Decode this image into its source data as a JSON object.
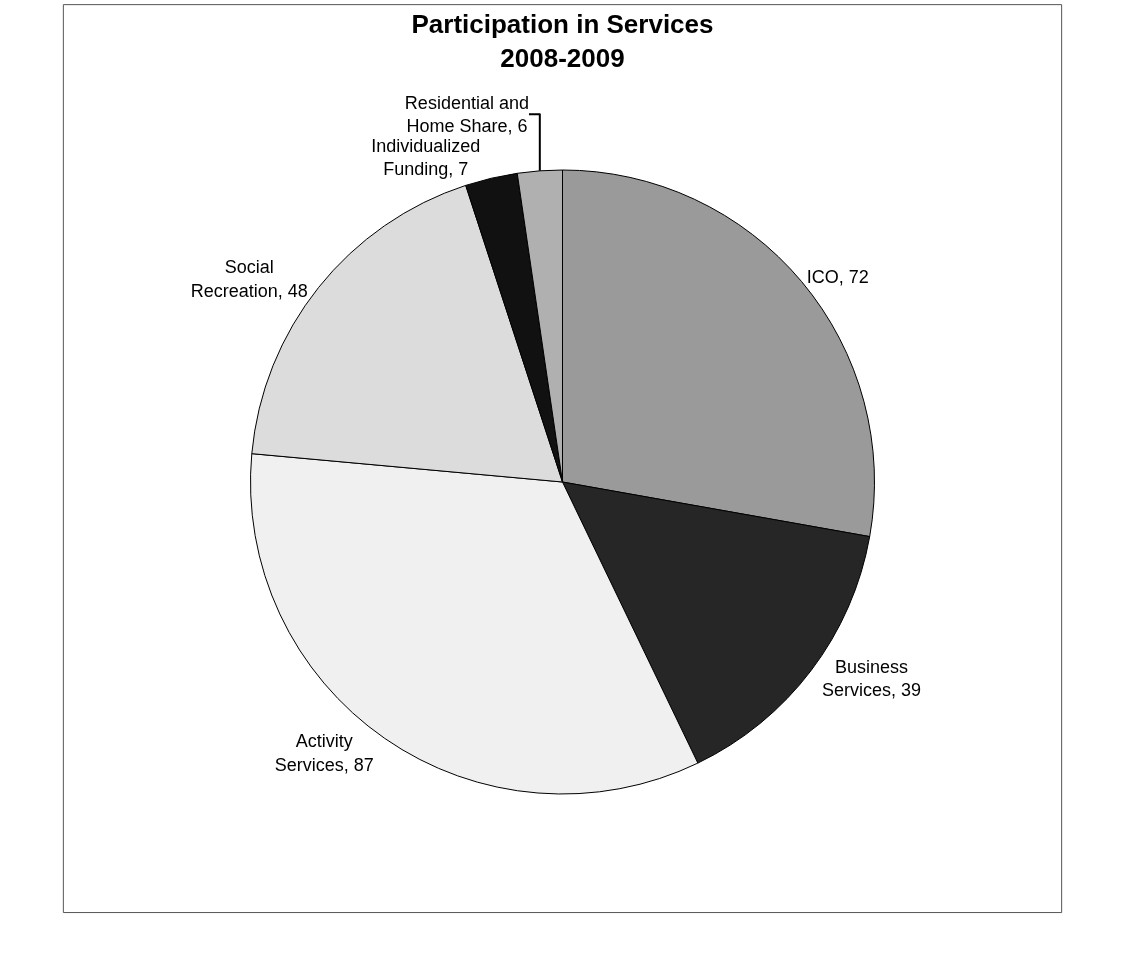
{
  "chart_data": {
    "type": "pie",
    "title": "Participation in Services\n2008-2009",
    "categories": [
      "ICO",
      "Business Services",
      "Activity Services",
      "Social Recreation",
      "Individualized Funding",
      "Residential and Home Share"
    ],
    "values": [
      72,
      39,
      87,
      48,
      7,
      6
    ],
    "colors": [
      "#9a9a9a",
      "#262626",
      "#f0f0f0",
      "#dcdcdc",
      "#111111",
      "#b0b0b0"
    ],
    "value_labels": [
      ", 72",
      ", 39",
      ", 87",
      ", 48",
      ", 7",
      ", 6"
    ],
    "legend": false
  }
}
